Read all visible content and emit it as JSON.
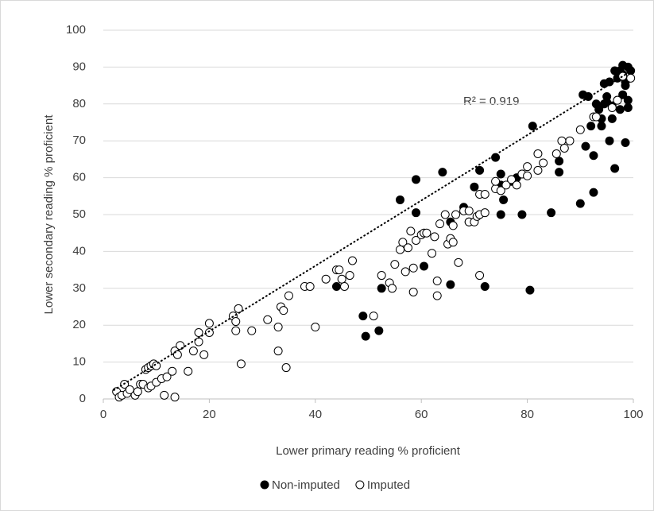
{
  "chart_data": {
    "type": "scatter",
    "xlabel": "Lower primary reading % proficient",
    "ylabel": "Lower secondary reading % proficient",
    "annotation": "R² = 0.919",
    "xlim": [
      0,
      100
    ],
    "xticks": [
      0,
      20,
      40,
      60,
      80,
      100
    ],
    "ylim": [
      0,
      100
    ],
    "yticks": [
      0,
      10,
      20,
      30,
      40,
      50,
      60,
      70,
      80,
      90,
      100
    ],
    "grid": true,
    "legend": "bottom",
    "trendline": {
      "x": [
        2,
        99
      ],
      "y": [
        2.4,
        88.4
      ]
    },
    "series": [
      {
        "name": "Non-imputed",
        "color": "#000000",
        "filled": true,
        "x": [
          44,
          49,
          49.5,
          52,
          52.5,
          56,
          59,
          59,
          60.5,
          64,
          65.5,
          65.5,
          68,
          69,
          70,
          71,
          72,
          74,
          75,
          75,
          75,
          75.5,
          77,
          78,
          79,
          79,
          80.5,
          81,
          84.5,
          86,
          86,
          90,
          90.5,
          91,
          91.5,
          92,
          92.5,
          92.5,
          93,
          93.5,
          94,
          94,
          94.5,
          94.5,
          95,
          95,
          95.5,
          95.5,
          96,
          96,
          96.5,
          96.5,
          97,
          97,
          97.5,
          97.5,
          98,
          98,
          98,
          98.5,
          98.5,
          98.5,
          99,
          99,
          99,
          99.5
        ],
        "values": [
          30.5,
          22.5,
          17,
          18.5,
          30,
          54,
          59.5,
          50.5,
          36,
          61.5,
          48,
          31,
          52,
          48,
          57.5,
          62,
          30.5,
          65.5,
          61,
          58,
          50,
          54,
          59,
          60,
          50,
          61,
          29.5,
          74,
          50.5,
          61.5,
          64.5,
          53,
          82.5,
          68.5,
          82,
          74,
          56,
          66,
          80,
          78.5,
          76,
          74,
          80,
          85.5,
          80.5,
          82,
          70,
          86,
          79.5,
          76,
          89,
          62.5,
          81,
          87,
          78.5,
          89,
          82.5,
          90.5,
          88,
          86,
          69.5,
          85,
          79,
          90,
          81,
          89
        ]
      },
      {
        "name": "Imputed",
        "color": "#000000",
        "filled": false,
        "x": [
          2.5,
          3,
          3.5,
          4,
          4.5,
          5,
          6,
          6.5,
          7,
          7.5,
          8,
          8.5,
          8.5,
          9,
          9,
          9.5,
          10,
          10,
          11,
          11.5,
          12,
          13,
          13.5,
          13.5,
          14,
          14.5,
          16,
          17,
          18,
          18,
          19,
          20,
          20,
          24.5,
          25,
          25,
          25.5,
          26,
          28,
          31,
          33,
          33,
          33.5,
          34,
          34.5,
          35,
          38,
          39,
          40,
          42,
          44,
          44.5,
          45,
          45.5,
          46.5,
          47,
          51,
          52.5,
          54,
          54.5,
          55,
          56,
          56.5,
          57,
          57.5,
          58,
          58.5,
          58.5,
          59,
          60,
          60.5,
          61,
          62,
          62.5,
          63,
          63,
          63.5,
          64.5,
          65,
          65.5,
          66,
          66,
          66.5,
          67,
          68,
          69,
          69,
          70,
          70.5,
          71,
          71,
          71,
          72,
          72,
          74,
          74,
          75,
          76,
          77,
          78,
          79,
          80,
          80,
          82,
          82,
          83,
          85.5,
          86.5,
          87,
          88,
          90,
          92.5,
          93,
          96,
          97,
          98,
          99.5
        ],
        "values": [
          2,
          0.5,
          1,
          4,
          1.5,
          2.5,
          1,
          2,
          4,
          4,
          8,
          3,
          8.5,
          9,
          3.5,
          9.5,
          9,
          4.5,
          5.5,
          1,
          6,
          7.5,
          0.5,
          13,
          12,
          14.5,
          7.5,
          13,
          15.5,
          18,
          12,
          20.5,
          18,
          22.5,
          18.5,
          21,
          24.5,
          9.5,
          18.5,
          21.5,
          19.5,
          13,
          25,
          24,
          8.5,
          28,
          30.5,
          30.5,
          19.5,
          32.5,
          35,
          35,
          32.5,
          30.5,
          33.5,
          37.5,
          22.5,
          33.5,
          31.5,
          30,
          36.5,
          40.5,
          42.5,
          34.5,
          41,
          45.5,
          29,
          35.5,
          43,
          44.5,
          45,
          45,
          39.5,
          44,
          32,
          28,
          47.5,
          50,
          42,
          43.5,
          42.5,
          47,
          50,
          37,
          51,
          48,
          51,
          48,
          49.5,
          55.5,
          33.5,
          50,
          55.5,
          50.5,
          57,
          59,
          56.5,
          58,
          59.5,
          58,
          61,
          63,
          60.5,
          62,
          66.5,
          64,
          66.5,
          70,
          68,
          70,
          73,
          76.5,
          76.5,
          79,
          81,
          87.5,
          87
        ]
      }
    ]
  }
}
